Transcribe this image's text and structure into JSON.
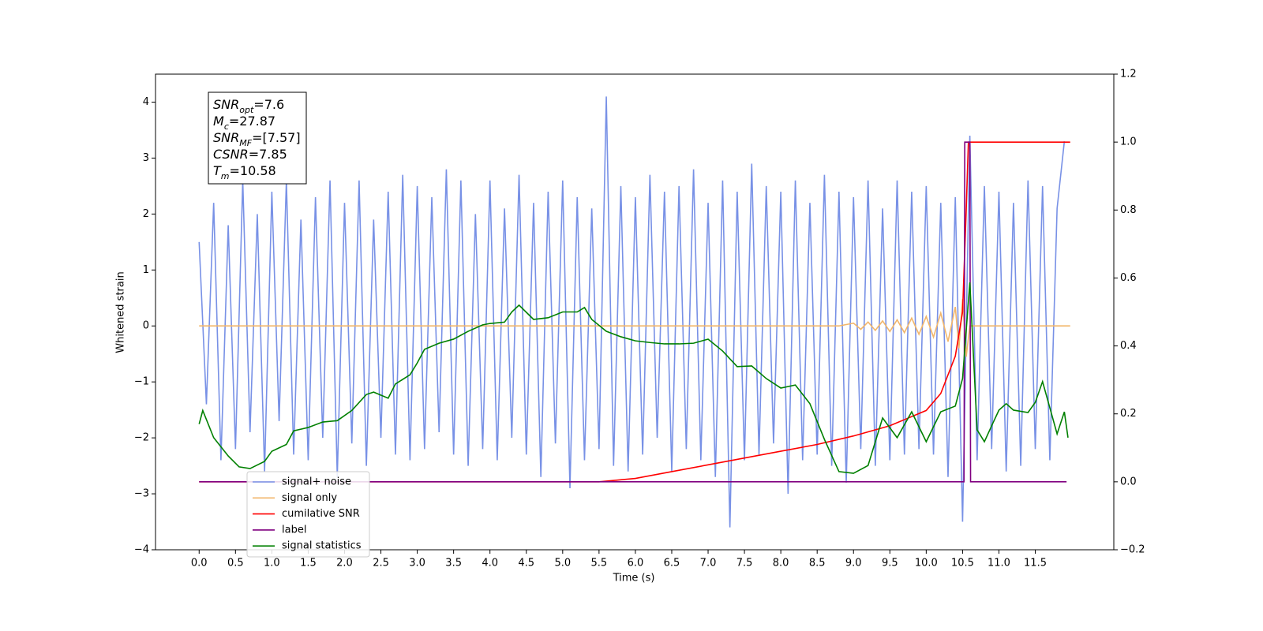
{
  "chart_data": {
    "type": "line",
    "x_label": "Time (s)",
    "y_label": "Whitened strain",
    "xlim": [
      -0.6,
      12.58
    ],
    "ylim": [
      -4,
      4.5
    ],
    "y2lim": [
      -0.2,
      1.2
    ],
    "xticks": [
      {
        "value": 0,
        "label": "0.0"
      },
      0.5,
      {
        "value": 1,
        "label": "1.0"
      },
      1.5,
      {
        "value": 2,
        "label": "2.0"
      },
      2.5,
      {
        "value": 3,
        "label": "3.0"
      },
      3.5,
      {
        "value": 4,
        "label": "4.0"
      },
      4.5,
      {
        "value": 5,
        "label": "5.0"
      },
      5.5,
      {
        "value": 6,
        "label": "6.0"
      },
      6.5,
      {
        "value": 7,
        "label": "7.0"
      },
      7.5,
      {
        "value": 8,
        "label": "8.0"
      },
      8.5,
      {
        "value": 9,
        "label": "9.0"
      },
      9.5,
      {
        "value": 10,
        "label": "10.0"
      },
      10.5,
      {
        "value": 11,
        "label": "11.0"
      },
      11.5
    ],
    "yticks": [
      {
        "value": -4,
        "label": "−4"
      },
      {
        "value": -3,
        "label": "−3"
      },
      {
        "value": -2,
        "label": "−2"
      },
      {
        "value": -1,
        "label": "−1"
      },
      0,
      1,
      2,
      3,
      4
    ],
    "y2ticks": [
      {
        "value": -0.2,
        "label": "−0.2"
      },
      {
        "value": 0,
        "label": "0.0"
      },
      0.2,
      0.4,
      0.6,
      0.8,
      {
        "value": 1,
        "label": "1.0"
      },
      1.2
    ],
    "legend": "lower left",
    "annotations": [
      {
        "name": "SNR",
        "sub": "opt",
        "text": "=7.6"
      },
      {
        "name": "M",
        "sub": "c",
        "text": "=27.87"
      },
      {
        "name": "SNR",
        "sub": "MF",
        "text": "=[7.57]"
      },
      {
        "name": "CSNR",
        "text": "=7.85"
      },
      {
        "name": "T",
        "sub": "m",
        "text": "=10.58"
      }
    ],
    "series": [
      {
        "name": "signal+ noise",
        "color": "#7891e6",
        "axis": "y",
        "x": [
          0,
          0.1,
          0.2,
          0.3,
          0.4,
          0.5,
          0.6,
          0.7,
          0.8,
          0.9,
          1,
          1.1,
          1.2,
          1.3,
          1.4,
          1.5,
          1.6,
          1.7,
          1.8,
          1.9,
          2,
          2.1,
          2.2,
          2.3,
          2.4,
          2.5,
          2.6,
          2.7,
          2.8,
          2.9,
          3,
          3.1,
          3.2,
          3.3,
          3.4,
          3.5,
          3.6,
          3.7,
          3.8,
          3.9,
          4,
          4.1,
          4.2,
          4.3,
          4.4,
          4.5,
          4.6,
          4.7,
          4.8,
          4.9,
          5,
          5.1,
          5.2,
          5.3,
          5.4,
          5.5,
          5.6,
          5.7,
          5.8,
          5.9,
          6,
          6.1,
          6.2,
          6.3,
          6.4,
          6.5,
          6.6,
          6.7,
          6.8,
          6.9,
          7,
          7.1,
          7.2,
          7.3,
          7.4,
          7.5,
          7.6,
          7.7,
          7.8,
          7.9,
          8,
          8.1,
          8.2,
          8.3,
          8.4,
          8.5,
          8.6,
          8.7,
          8.8,
          8.9,
          9,
          9.1,
          9.2,
          9.3,
          9.4,
          9.5,
          9.6,
          9.7,
          9.8,
          9.9,
          10,
          10.1,
          10.2,
          10.3,
          10.4,
          10.5,
          10.6,
          10.7,
          10.8,
          10.9,
          11,
          11.1,
          11.2,
          11.3,
          11.4,
          11.5,
          11.6,
          11.7,
          11.8,
          11.9
        ],
        "values": [
          1.5,
          -1.4,
          2.2,
          -2.4,
          1.8,
          -2.2,
          2.6,
          -1.9,
          2.0,
          -2.6,
          2.4,
          -1.7,
          2.6,
          -2.3,
          1.9,
          -2.4,
          2.3,
          -2.0,
          2.6,
          -2.7,
          2.2,
          -2.1,
          2.6,
          -2.5,
          1.9,
          -2.0,
          2.4,
          -2.3,
          2.7,
          -2.4,
          2.5,
          -2.2,
          2.3,
          -1.9,
          2.8,
          -2.3,
          2.6,
          -2.5,
          2.0,
          -2.2,
          2.6,
          -2.4,
          2.1,
          -2.0,
          2.7,
          -2.3,
          2.2,
          -2.7,
          2.4,
          -2.1,
          2.6,
          -2.9,
          2.3,
          -2.4,
          2.1,
          -2.2,
          4.1,
          -2.5,
          2.5,
          -2.6,
          2.3,
          -2.3,
          2.7,
          -2.0,
          2.4,
          -2.6,
          2.5,
          -2.2,
          2.8,
          -2.4,
          2.2,
          -2.7,
          2.6,
          -3.6,
          2.4,
          -2.4,
          2.9,
          -2.3,
          2.5,
          -2.1,
          2.4,
          -3.0,
          2.6,
          -2.4,
          2.2,
          -2.3,
          2.7,
          -2.5,
          2.4,
          -2.8,
          2.3,
          -2.2,
          2.6,
          -2.5,
          2.1,
          -2.4,
          2.6,
          -2.3,
          2.4,
          -2.2,
          2.5,
          -2.3,
          2.2,
          -2.7,
          2.3,
          -3.5,
          3.4,
          -2.4,
          2.5,
          -2.2,
          2.4,
          -2.6,
          2.2,
          -2.5,
          2.6,
          -2.2,
          2.5,
          -2.4,
          2.1,
          3.3
        ]
      },
      {
        "name": "signal only",
        "color": "#f2b66b",
        "axis": "y",
        "x": [
          0,
          8.8,
          9.0,
          9.1,
          9.2,
          9.3,
          9.4,
          9.5,
          9.6,
          9.7,
          9.8,
          9.9,
          10.0,
          10.1,
          10.2,
          10.3,
          10.4,
          10.45,
          10.5,
          10.55,
          10.6,
          11.98
        ],
        "values": [
          0,
          0,
          0.05,
          -0.06,
          0.07,
          -0.08,
          0.09,
          -0.1,
          0.11,
          -0.12,
          0.14,
          -0.15,
          0.17,
          -0.2,
          0.23,
          -0.28,
          0.34,
          -0.4,
          0.48,
          -0.55,
          0,
          0
        ]
      },
      {
        "name": "cumilative SNR",
        "color": "#ff0000",
        "axis": "y2",
        "x": [
          0,
          5.5,
          6,
          6.5,
          7,
          7.5,
          8,
          8.5,
          9,
          9.5,
          10,
          10.2,
          10.4,
          10.5,
          10.55,
          10.58,
          11.98
        ],
        "values": [
          0,
          0,
          0.01,
          0.03,
          0.05,
          0.07,
          0.09,
          0.11,
          0.135,
          0.165,
          0.21,
          0.26,
          0.37,
          0.5,
          0.8,
          1.0,
          1.0
        ]
      },
      {
        "name": "label",
        "color": "#800080",
        "axis": "y2",
        "x": [
          0,
          10.52,
          10.53,
          10.6,
          10.61,
          11.93
        ],
        "values": [
          0,
          0,
          1,
          1,
          0,
          0
        ]
      },
      {
        "name": "signal statistics",
        "color": "#008000",
        "axis": "y2",
        "x": [
          0,
          0.05,
          0.2,
          0.4,
          0.55,
          0.7,
          0.9,
          1.0,
          1.2,
          1.3,
          1.5,
          1.7,
          1.9,
          2.1,
          2.3,
          2.4,
          2.6,
          2.7,
          2.9,
          3.0,
          3.1,
          3.3,
          3.5,
          3.7,
          3.9,
          4.0,
          4.2,
          4.3,
          4.4,
          4.6,
          4.8,
          5.0,
          5.2,
          5.3,
          5.4,
          5.6,
          5.8,
          6.0,
          6.2,
          6.4,
          6.6,
          6.8,
          7.0,
          7.2,
          7.4,
          7.6,
          7.8,
          8.0,
          8.2,
          8.4,
          8.6,
          8.8,
          9.0,
          9.2,
          9.4,
          9.6,
          9.8,
          10.0,
          10.2,
          10.4,
          10.5,
          10.6,
          10.7,
          10.8,
          10.9,
          11.0,
          11.1,
          11.2,
          11.4,
          11.5,
          11.6,
          11.8,
          11.9,
          11.95
        ],
        "values": [
          0.17,
          0.21,
          0.13,
          0.076,
          0.044,
          0.039,
          0.06,
          0.09,
          0.11,
          0.15,
          0.16,
          0.176,
          0.18,
          0.21,
          0.257,
          0.264,
          0.246,
          0.288,
          0.315,
          0.35,
          0.39,
          0.408,
          0.42,
          0.443,
          0.462,
          0.466,
          0.47,
          0.5,
          0.52,
          0.478,
          0.483,
          0.5,
          0.5,
          0.513,
          0.478,
          0.443,
          0.427,
          0.415,
          0.41,
          0.406,
          0.406,
          0.408,
          0.42,
          0.385,
          0.339,
          0.341,
          0.304,
          0.276,
          0.285,
          0.23,
          0.125,
          0.03,
          0.025,
          0.048,
          0.188,
          0.13,
          0.206,
          0.118,
          0.206,
          0.223,
          0.304,
          0.587,
          0.153,
          0.118,
          0.165,
          0.211,
          0.23,
          0.211,
          0.204,
          0.234,
          0.295,
          0.141,
          0.206,
          0.13
        ]
      }
    ]
  }
}
